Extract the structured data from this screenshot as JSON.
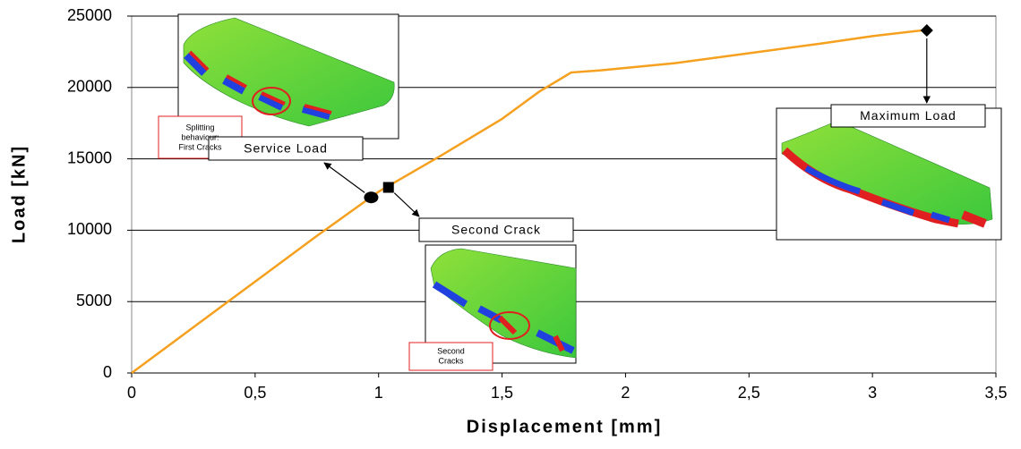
{
  "chart_data": {
    "type": "line",
    "x_label": "Displacement [mm]",
    "y_label": "Load [kN]",
    "x": [
      0,
      0.25,
      0.5,
      0.75,
      1.0,
      1.25,
      1.5,
      1.65,
      1.78,
      1.9,
      2.2,
      2.5,
      2.8,
      3.0,
      3.2
    ],
    "values": [
      0,
      3200,
      6400,
      9600,
      12700,
      15200,
      17800,
      19700,
      21050,
      21200,
      21700,
      22400,
      23100,
      23600,
      24000
    ],
    "color": "#f5a01e",
    "xlim": [
      0,
      3.5
    ],
    "xticks": [
      0,
      {
        "value": 0.5,
        "label": "0,5"
      },
      1,
      {
        "value": 1.5,
        "label": "1,5"
      },
      2,
      {
        "value": 2.5,
        "label": "2,5"
      },
      3,
      {
        "value": 3.5,
        "label": "3,5"
      }
    ],
    "ylim": [
      0,
      25000
    ],
    "yticks": [
      0,
      5000,
      10000,
      15000,
      20000,
      25000
    ],
    "grid": true,
    "annotations": [
      {
        "text": "Service Load",
        "x": 0.97,
        "y": 12300,
        "marker": "circle"
      },
      {
        "text": "Second Crack",
        "x": 1.04,
        "y": 13000,
        "marker": "square"
      },
      {
        "text": "Maximum Load",
        "x": 3.22,
        "y": 24000,
        "marker": "diamond"
      }
    ],
    "insets": [
      {
        "caption": [
          "Splitting",
          "behaviour:",
          "First Cracks"
        ]
      },
      {
        "caption": [
          "Second",
          "Cracks"
        ]
      }
    ]
  }
}
